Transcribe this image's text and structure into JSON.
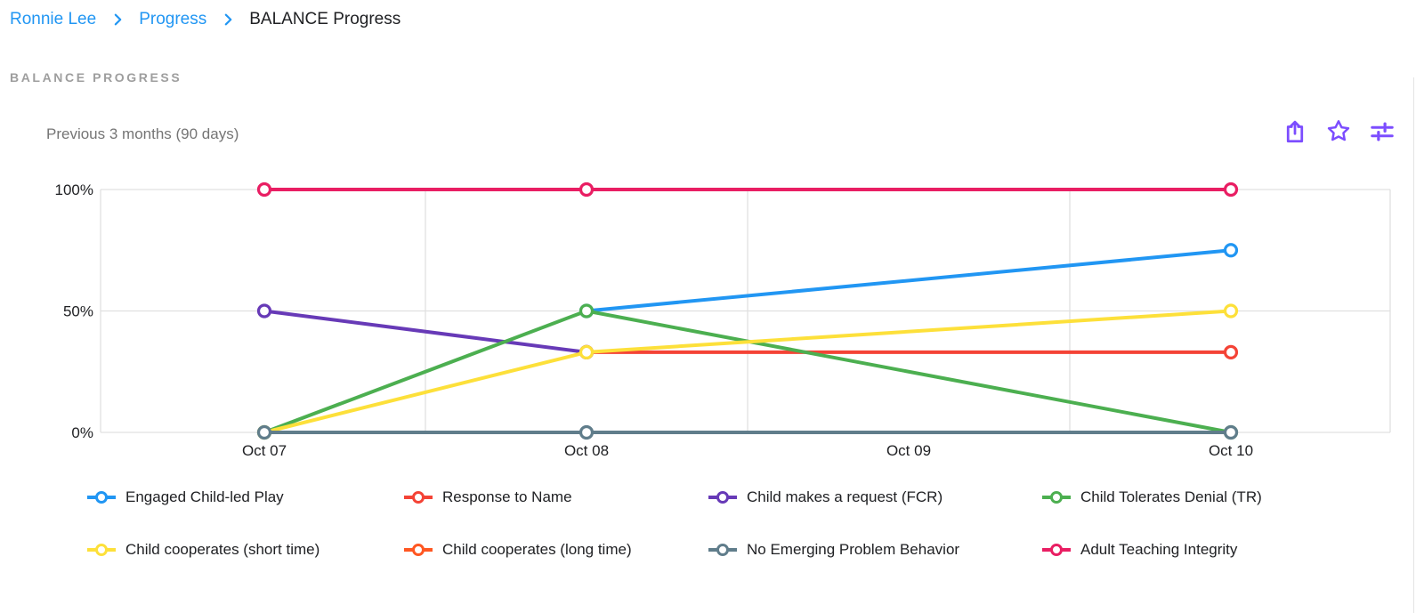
{
  "breadcrumb": {
    "items": [
      {
        "label": "Ronnie Lee"
      },
      {
        "label": "Progress"
      },
      {
        "label": "BALANCE Progress"
      }
    ]
  },
  "page": {
    "section_title": "BALANCE PROGRESS"
  },
  "toolbar": {
    "period_label": "Previous 3 months (90 days)",
    "icons": [
      {
        "name": "share-export"
      },
      {
        "name": "favorite-star"
      },
      {
        "name": "chart-settings-sliders"
      }
    ],
    "icon_color": "#7C4DFF"
  },
  "chart_data": {
    "type": "line",
    "title": "BALANCE Progress",
    "x_categories": [
      "Oct 07",
      "Oct 08",
      "Oct 09",
      "Oct 10"
    ],
    "y_ticks": [
      "100%",
      "50%",
      "0%"
    ],
    "ylim": [
      0,
      100
    ],
    "y_unit": "percent",
    "grid": true,
    "legend_position": "bottom",
    "point_style": "open-circle",
    "series": [
      {
        "name": "Engaged Child-led Play",
        "color": "#2196F3",
        "values": [
          null,
          50,
          null,
          75
        ]
      },
      {
        "name": "Response to Name",
        "color": "#F44336",
        "values": [
          null,
          33,
          null,
          33
        ]
      },
      {
        "name": "Child makes a request (FCR)",
        "color": "#673AB7",
        "values": [
          50,
          33,
          null,
          null
        ]
      },
      {
        "name": "Child Tolerates Denial (TR)",
        "color": "#4CAF50",
        "values": [
          0,
          50,
          null,
          0
        ]
      },
      {
        "name": "Child cooperates (short time)",
        "color": "#FDE03A",
        "values": [
          0,
          33,
          null,
          50
        ]
      },
      {
        "name": "Child cooperates (long time)",
        "color": "#FF5722",
        "values": [
          null,
          null,
          null,
          null
        ]
      },
      {
        "name": "No Emerging Problem Behavior",
        "color": "#607D8B",
        "values": [
          0,
          0,
          null,
          0
        ]
      },
      {
        "name": "Adult Teaching Integrity",
        "color": "#E91E63",
        "values": [
          100,
          100,
          null,
          100
        ]
      }
    ]
  },
  "colors": {
    "link": "#2196F3",
    "text_dark": "#202124",
    "text_gray": "#757575",
    "heading_gray": "#9E9E9E",
    "grid": "#E0E0E0"
  }
}
